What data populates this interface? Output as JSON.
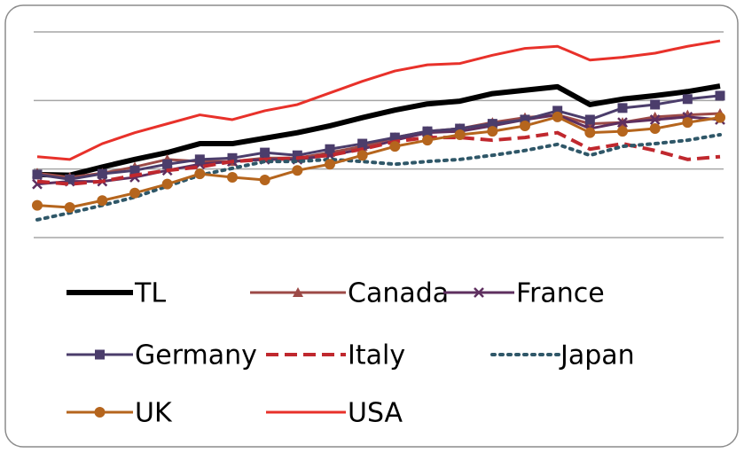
{
  "chart_data": {
    "type": "line",
    "ylim": [
      0,
      3
    ],
    "yticks": [
      0,
      1,
      2,
      3
    ],
    "grid": true,
    "legend": "bottom",
    "series": [
      {
        "name": "TL",
        "color": "#000000",
        "values": [
          0.92,
          0.91,
          1.03,
          1.14,
          1.24,
          1.37,
          1.37,
          1.45,
          1.53,
          1.63,
          1.75,
          1.86,
          1.95,
          1.99,
          2.1,
          2.15,
          2.2,
          1.94,
          2.02,
          2.07,
          2.13,
          2.21
        ]
      },
      {
        "name": "Canada",
        "color": "#9c4a47",
        "marker": "triangle",
        "values": [
          0.94,
          0.88,
          0.94,
          1.03,
          1.14,
          1.11,
          1.11,
          1.16,
          1.16,
          1.24,
          1.33,
          1.46,
          1.55,
          1.59,
          1.68,
          1.75,
          1.79,
          1.66,
          1.68,
          1.76,
          1.79,
          1.81
        ]
      },
      {
        "name": "France",
        "color": "#5e2f5f",
        "marker": "x",
        "values": [
          0.78,
          0.82,
          0.82,
          0.88,
          0.98,
          1.07,
          1.11,
          1.14,
          1.14,
          1.2,
          1.29,
          1.42,
          1.53,
          1.55,
          1.63,
          1.72,
          1.79,
          1.59,
          1.68,
          1.72,
          1.76,
          1.72
        ]
      },
      {
        "name": "Germany",
        "color": "#4b3d6b",
        "marker": "square",
        "values": [
          0.92,
          0.85,
          0.93,
          0.98,
          1.07,
          1.14,
          1.16,
          1.24,
          1.2,
          1.29,
          1.37,
          1.46,
          1.55,
          1.59,
          1.66,
          1.72,
          1.85,
          1.72,
          1.89,
          1.94,
          2.02,
          2.07
        ]
      },
      {
        "name": "Italy",
        "color": "#c0282e",
        "dash": "dashed",
        "values": [
          0.82,
          0.78,
          0.82,
          0.91,
          0.98,
          1.03,
          1.11,
          1.14,
          1.16,
          1.2,
          1.29,
          1.4,
          1.46,
          1.46,
          1.42,
          1.46,
          1.53,
          1.29,
          1.37,
          1.27,
          1.14,
          1.18
        ]
      },
      {
        "name": "Japan",
        "color": "#2f5768",
        "dash": "dotted",
        "values": [
          0.26,
          0.36,
          0.47,
          0.59,
          0.75,
          0.91,
          1.01,
          1.11,
          1.11,
          1.14,
          1.11,
          1.07,
          1.11,
          1.14,
          1.2,
          1.27,
          1.36,
          1.2,
          1.33,
          1.37,
          1.42,
          1.5
        ]
      },
      {
        "name": "UK",
        "color": "#b5651d",
        "marker": "circle",
        "values": [
          0.47,
          0.44,
          0.54,
          0.65,
          0.78,
          0.93,
          0.88,
          0.84,
          0.98,
          1.07,
          1.2,
          1.33,
          1.42,
          1.5,
          1.55,
          1.63,
          1.76,
          1.53,
          1.55,
          1.59,
          1.68,
          1.75
        ]
      },
      {
        "name": "USA",
        "color": "#e8312a",
        "values": [
          1.18,
          1.14,
          1.37,
          1.53,
          1.66,
          1.79,
          1.72,
          1.85,
          1.94,
          2.11,
          2.28,
          2.43,
          2.52,
          2.54,
          2.66,
          2.76,
          2.79,
          2.59,
          2.63,
          2.69,
          2.79,
          2.87
        ]
      }
    ]
  }
}
